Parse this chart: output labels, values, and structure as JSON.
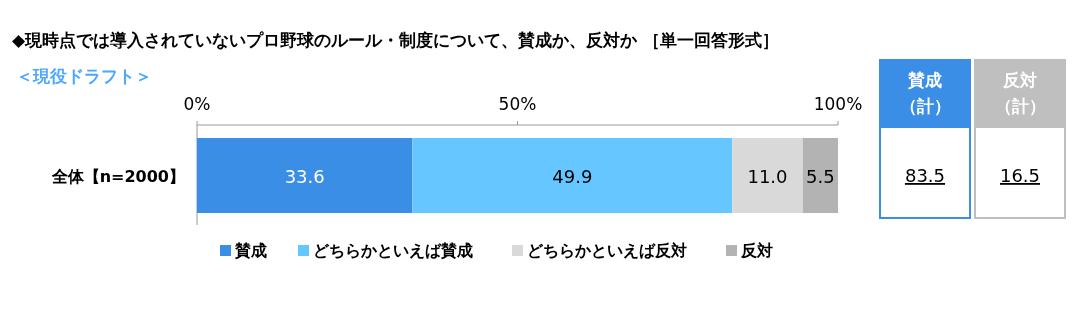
{
  "chart_data": {
    "type": "bar",
    "orientation": "horizontal",
    "stacked": true,
    "title": "◆現時点では導入されていないプロ野球のルール・制度について、賛成か、反対か ［単一回答形式］",
    "subtitle": "＜現役ドラフト＞",
    "categories": [
      "全体【n=2000】"
    ],
    "series": [
      {
        "name": "賛成",
        "color": "#3a8ee6",
        "values": [
          33.6
        ],
        "value_labels": [
          "33.6"
        ]
      },
      {
        "name": "どちらかといえば賛成",
        "color": "#66c6ff",
        "values": [
          49.9
        ],
        "value_labels": [
          "49.9"
        ]
      },
      {
        "name": "どちらかといえば反対",
        "color": "#d9d9d9",
        "values": [
          11.0
        ],
        "value_labels": [
          "11.0"
        ]
      },
      {
        "name": "反対",
        "color": "#b3b3b3",
        "values": [
          5.5
        ],
        "value_labels": [
          "5.5"
        ]
      }
    ],
    "xlim": [
      0,
      100
    ],
    "xticks": [
      {
        "value": 0,
        "label": "0%"
      },
      {
        "value": 50,
        "label": "50%"
      },
      {
        "value": 100,
        "label": "100%"
      }
    ],
    "legend": "bottom",
    "grid": false,
    "annotations": [
      "賛成（計）",
      "83.5",
      "反対（計）",
      "16.5"
    ]
  }
}
